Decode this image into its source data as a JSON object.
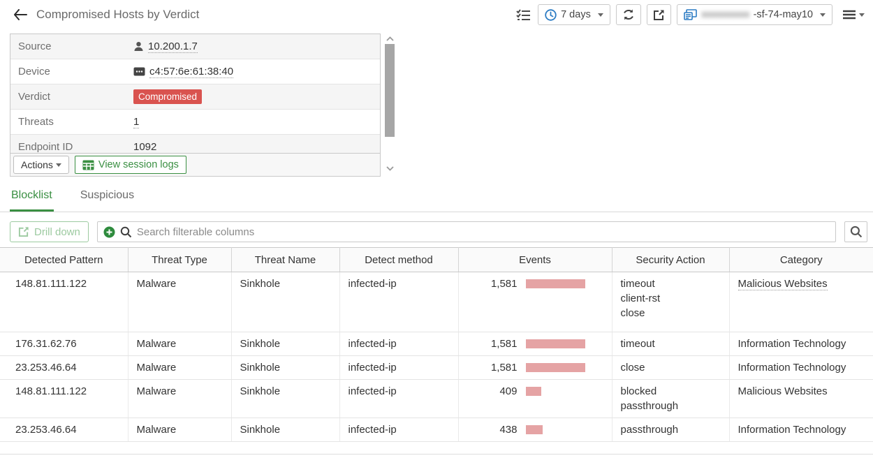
{
  "colors": {
    "accent_green": "#3a8f42",
    "muted_green": "#9ccaa0",
    "badge_red": "#d9534f",
    "events_bar_pink": "#e5a3a4",
    "icon_blue": "#2c7cc4"
  },
  "header": {
    "title": "Compromised Hosts by Verdict",
    "toolbar": {
      "time_range": "7 days",
      "device_name_redacted": "xxxxxxxxxxx",
      "device_name_suffix": "-sf-74-may10"
    }
  },
  "details": {
    "rows": [
      {
        "label": "Source",
        "value": "10.200.1.7",
        "icon": "user-icon",
        "underline": true
      },
      {
        "label": "Device",
        "value": "c4:57:6e:61:38:40",
        "icon": "endpoint-icon",
        "underline": true
      },
      {
        "label": "Verdict",
        "value": "Compromised",
        "badge": true
      },
      {
        "label": "Threats",
        "value": "1",
        "underline": true
      },
      {
        "label": "Endpoint ID",
        "value": "1092"
      }
    ],
    "actions_button": "Actions",
    "view_session_logs_button": "View session logs"
  },
  "tabs": [
    {
      "label": "Blocklist",
      "active": true
    },
    {
      "label": "Suspicious",
      "active": false
    }
  ],
  "filter_bar": {
    "drill_down_button": "Drill down",
    "search_placeholder": "Search filterable columns"
  },
  "table": {
    "columns": [
      "Detected Pattern",
      "Threat Type",
      "Threat Name",
      "Detect method",
      "Events",
      "Security Action",
      "Category"
    ],
    "events_max": 1581,
    "rows": [
      {
        "detected_pattern": "148.81.111.122",
        "threat_type": "Malware",
        "threat_name": "Sinkhole",
        "detect_method": "infected-ip",
        "events_display": "1,581",
        "events_value": 1581,
        "security_actions": [
          "timeout",
          "client-rst",
          "close"
        ],
        "category": "Malicious Websites",
        "category_underlined": true
      },
      {
        "detected_pattern": "176.31.62.76",
        "threat_type": "Malware",
        "threat_name": "Sinkhole",
        "detect_method": "infected-ip",
        "events_display": "1,581",
        "events_value": 1581,
        "security_actions": [
          "timeout"
        ],
        "category": "Information Technology",
        "category_underlined": false
      },
      {
        "detected_pattern": "23.253.46.64",
        "threat_type": "Malware",
        "threat_name": "Sinkhole",
        "detect_method": "infected-ip",
        "events_display": "1,581",
        "events_value": 1581,
        "security_actions": [
          "close"
        ],
        "category": "Information Technology",
        "category_underlined": false
      },
      {
        "detected_pattern": "148.81.111.122",
        "threat_type": "Malware",
        "threat_name": "Sinkhole",
        "detect_method": "infected-ip",
        "events_display": "409",
        "events_value": 409,
        "security_actions": [
          "blocked",
          "passthrough"
        ],
        "category": "Malicious Websites",
        "category_underlined": false
      },
      {
        "detected_pattern": "23.253.46.64",
        "threat_type": "Malware",
        "threat_name": "Sinkhole",
        "detect_method": "infected-ip",
        "events_display": "438",
        "events_value": 438,
        "security_actions": [
          "passthrough"
        ],
        "category": "Information Technology",
        "category_underlined": false
      }
    ]
  },
  "footer": {
    "total_count": "5"
  }
}
